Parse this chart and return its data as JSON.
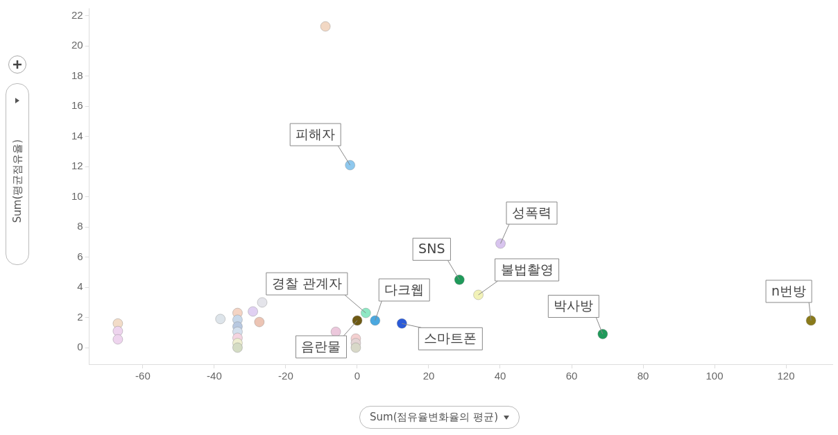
{
  "chart_data": {
    "type": "scatter",
    "xlabel": "Sum(점유율변화율의 평균)",
    "ylabel": "Sum(평균점유율)",
    "xlim": [
      -75,
      133
    ],
    "xticks": [
      -60,
      -40,
      -20,
      0,
      20,
      40,
      60,
      80,
      100,
      120
    ],
    "ylim": [
      -1.1,
      22.5
    ],
    "yticks": [
      0,
      2,
      4,
      6,
      8,
      10,
      12,
      14,
      16,
      18,
      20,
      22
    ],
    "grid": false,
    "legend": false,
    "marker": "circle",
    "series": [
      {
        "x": [
          -8.9,
          -2.0,
          40.1,
          28.6,
          33.9,
          2.4,
          5.0,
          0,
          12.5,
          68.7,
          127,
          -67,
          -67,
          -67,
          -38.3,
          -33.5,
          -33.5,
          -33.5,
          -33.5,
          -33.5,
          -33.5,
          -33.5,
          -29.2,
          -26.6,
          -27.4,
          -6,
          -0.4,
          -0.4,
          -0.4
        ],
        "values": [
          21.3,
          12.1,
          6.9,
          4.5,
          3.5,
          2.3,
          1.8,
          1.8,
          1.6,
          0.9,
          1.8,
          1.6,
          1.1,
          0.55,
          1.9,
          2.3,
          1.85,
          1.4,
          1.05,
          0.65,
          0.3,
          0.0,
          2.4,
          3.0,
          1.7,
          1.05,
          0.6,
          0.3,
          0.0
        ],
        "colors": [
          "#f2d8c4",
          "#8ec8ee",
          "#d8c4ee",
          "#1f9a5a",
          "#f2f2b8",
          "#8ee8c4",
          "#4aa8e0",
          "#6e5a14",
          "#2a5ad8",
          "#1f9a5a",
          "#8a7a1a",
          "#f2dcc8",
          "#eed4ee",
          "#eed4ee",
          "#dde4ea",
          "#f4d4c4",
          "#c8d8ea",
          "#b8c8e0",
          "#d4e0ee",
          "#f4d4e0",
          "#eeeed0",
          "#d4dcc4",
          "#e0d0f2",
          "#e4e4ea",
          "#ecc4b4",
          "#ecc8dc",
          "#f4d0d0",
          "#e4d4d4",
          "#d8d8c8"
        ]
      }
    ],
    "annotations": [
      {
        "text": "피해자",
        "x": -2.0,
        "y": 12.1
      },
      {
        "text": "성폭력",
        "x": 40.1,
        "y": 6.9
      },
      {
        "text": "SNS",
        "x": 28.6,
        "y": 4.5
      },
      {
        "text": "불법촬영",
        "x": 33.9,
        "y": 3.5
      },
      {
        "text": "경찰 관계자",
        "x": 2.4,
        "y": 2.3
      },
      {
        "text": "다크웹",
        "x": 5.0,
        "y": 1.8
      },
      {
        "text": "음란물",
        "x": 0,
        "y": 1.8
      },
      {
        "text": "스마트폰",
        "x": 12.5,
        "y": 1.6
      },
      {
        "text": "박사방",
        "x": 68.7,
        "y": 0.9
      },
      {
        "text": "n번방",
        "x": 127,
        "y": 1.8
      }
    ]
  }
}
